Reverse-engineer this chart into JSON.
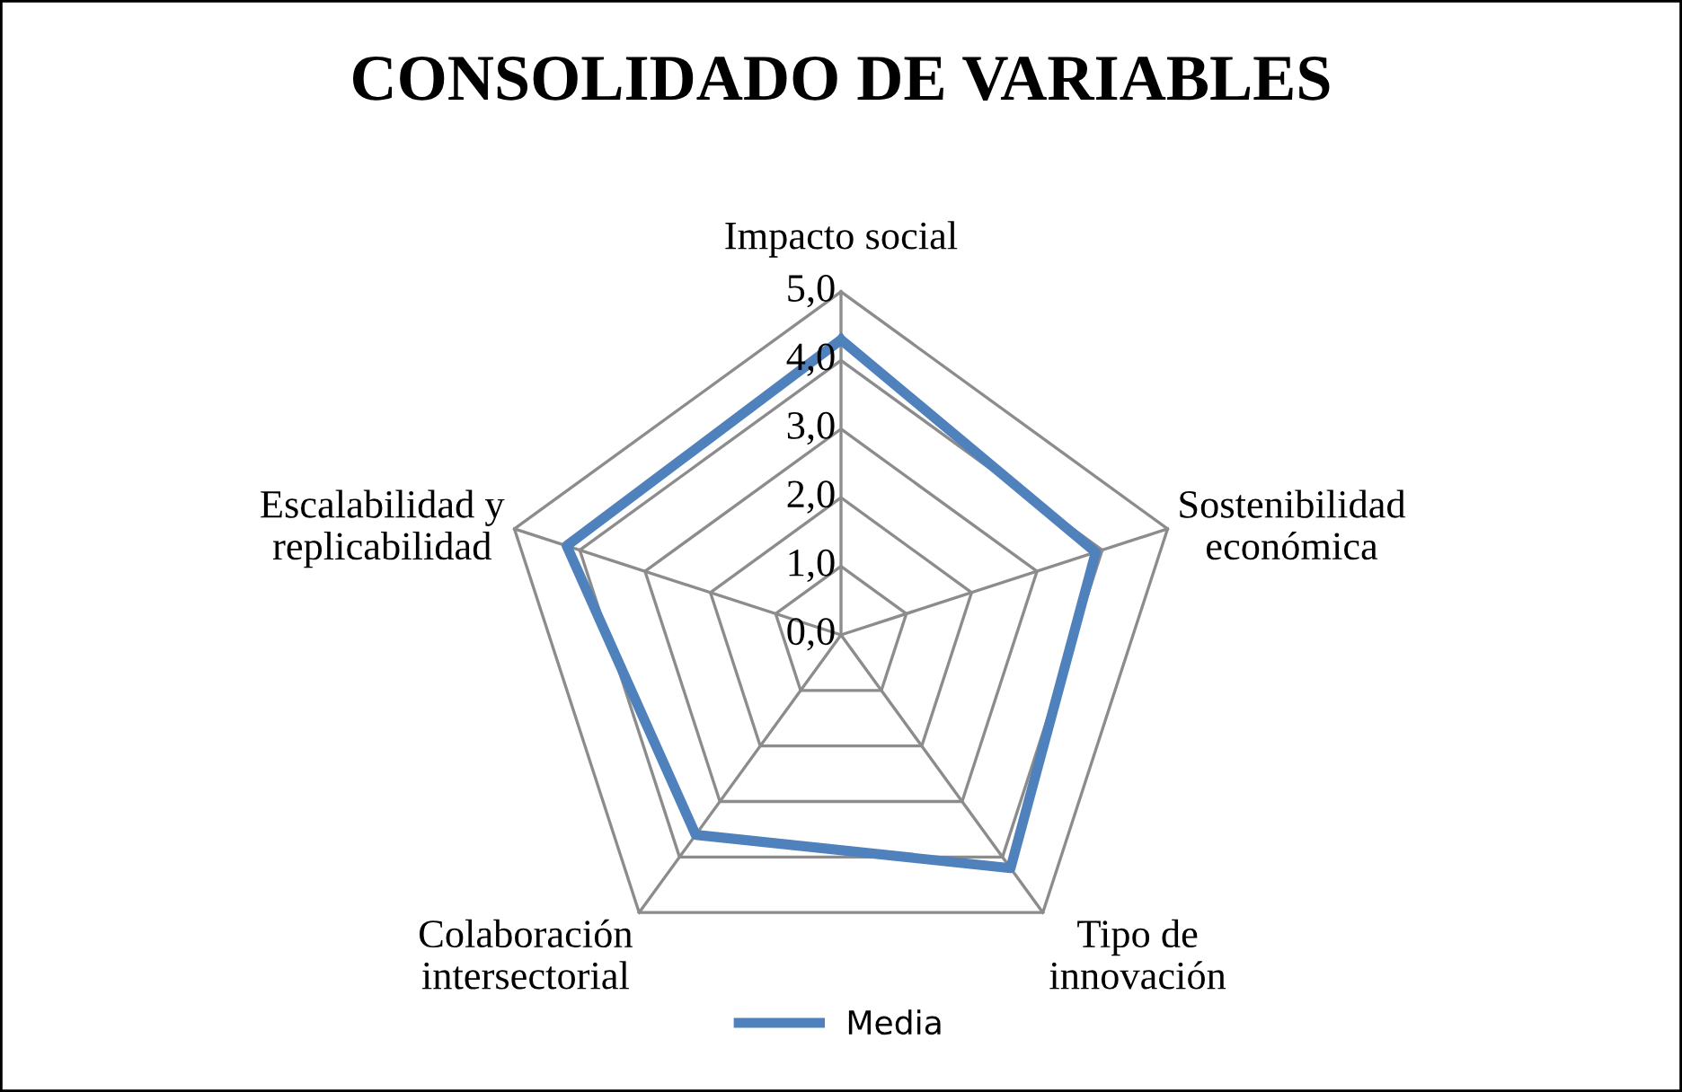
{
  "chart_data": {
    "type": "radar",
    "title": "CONSOLIDADO DE VARIABLES",
    "categories": [
      "Impacto social",
      "Sostenibilidad\neconómica",
      "Tipo de\ninnovación",
      "Colaboración\nintersectorial",
      "Escalabilidad y\nreplicabilidad"
    ],
    "series": [
      {
        "name": "Media",
        "color": "#4f81bd",
        "values": [
          4.3,
          3.9,
          4.2,
          3.6,
          4.2
        ]
      }
    ],
    "ylim": [
      0,
      5
    ],
    "yticks": [
      {
        "value": 0,
        "label": "0,0"
      },
      {
        "value": 1,
        "label": "1,0"
      },
      {
        "value": 2,
        "label": "2,0"
      },
      {
        "value": 3,
        "label": "3,0"
      },
      {
        "value": 4,
        "label": "4,0"
      },
      {
        "value": 5,
        "label": "5,0"
      }
    ],
    "grid": true,
    "legend": "bottom",
    "marker": "none",
    "line_style": "solid"
  }
}
